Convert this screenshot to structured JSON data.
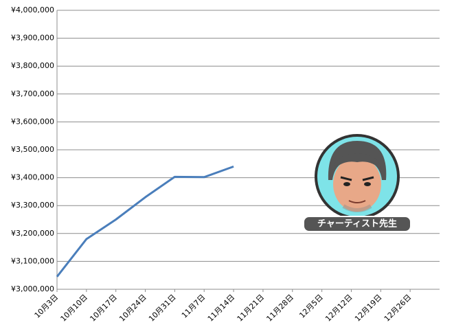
{
  "chart_data": {
    "type": "line",
    "categories": [
      "10月3日",
      "10月10日",
      "10月17日",
      "10月24日",
      "10月31日",
      "11月7日",
      "11月14日",
      "11月21日",
      "11月28日",
      "12月5日",
      "12月12日",
      "12月19日",
      "12月26日"
    ],
    "series": [
      {
        "color": "#4a7ebb",
        "values": [
          3045000,
          3180000,
          3250000,
          3330000,
          3403000,
          3402000,
          3440000,
          null,
          null,
          null,
          null,
          null,
          null
        ]
      }
    ],
    "ylim": [
      3000000,
      4000000
    ],
    "yticks": [
      {
        "value": 3000000,
        "label": "¥3,000,000"
      },
      {
        "value": 3100000,
        "label": "¥3,100,000"
      },
      {
        "value": 3200000,
        "label": "¥3,200,000"
      },
      {
        "value": 3300000,
        "label": "¥3,300,000"
      },
      {
        "value": 3400000,
        "label": "¥3,400,000"
      },
      {
        "value": 3500000,
        "label": "¥3,500,000"
      },
      {
        "value": 3600000,
        "label": "¥3,600,000"
      },
      {
        "value": 3700000,
        "label": "¥3,700,000"
      },
      {
        "value": 3800000,
        "label": "¥3,800,000"
      },
      {
        "value": 3900000,
        "label": "¥3,900,000"
      },
      {
        "value": 4000000,
        "label": "¥4,000,000"
      }
    ],
    "grid": true,
    "annotation": "チャーティスト先生"
  }
}
